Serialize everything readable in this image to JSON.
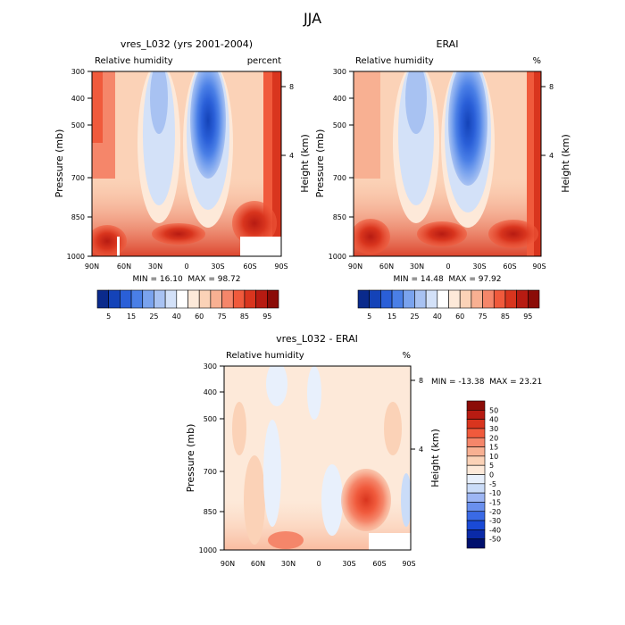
{
  "figure": {
    "title": "JJA"
  },
  "palettes": {
    "rh": [
      "#0a2a8c",
      "#1443b8",
      "#2a5fd8",
      "#4a7fe6",
      "#7aa3ee",
      "#a8c2f2",
      "#d3e1f8",
      "#ffffff",
      "#fde9d9",
      "#fbd2b7",
      "#f8b092",
      "#f5866a",
      "#f05a3c",
      "#d9351e",
      "#b71b12",
      "#8b0c07"
    ],
    "diff": [
      "#00106e",
      "#0a2aa8",
      "#1a4ad6",
      "#3a6ae6",
      "#6a90ee",
      "#9db6f4",
      "#cadcf8",
      "#e8f0fc",
      "#fde9d9",
      "#fbd2b7",
      "#f8b092",
      "#f5866a",
      "#f05a3c",
      "#d9351e",
      "#b71b12",
      "#8b0c07"
    ]
  },
  "chart_data": [
    {
      "type": "heatmap",
      "title": "vres_L032 (yrs 2001-2004)",
      "subtitle_left": "Relative humidity",
      "subtitle_right": "percent",
      "ylabel": "Pressure (mb)",
      "ylabel_right": "Height (km)",
      "x_ticks": [
        "90N",
        "60N",
        "30N",
        "0",
        "30S",
        "60S",
        "90S"
      ],
      "y_ticks": [
        "300",
        "400",
        "500",
        "700",
        "850",
        "1000"
      ],
      "y_ticks_right": [
        "8",
        "4"
      ],
      "stats": "MIN = 16.10  MAX = 98.72",
      "min": 16.1,
      "max": 98.72,
      "colorbar": {
        "labels": [
          "5",
          "15",
          "25",
          "40",
          "60",
          "75",
          "85",
          "95"
        ]
      }
    },
    {
      "type": "heatmap",
      "title": "ERAI",
      "subtitle_left": "Relative humidity",
      "subtitle_right": "%",
      "ylabel": "Pressure (mb)",
      "ylabel_right": "Height (km)",
      "x_ticks": [
        "90N",
        "60N",
        "30N",
        "0",
        "30S",
        "60S",
        "90S"
      ],
      "y_ticks": [
        "300",
        "400",
        "500",
        "700",
        "850",
        "1000"
      ],
      "y_ticks_right": [
        "8",
        "4"
      ],
      "stats": "MIN = 14.48  MAX = 97.92",
      "min": 14.48,
      "max": 97.92,
      "colorbar": {
        "labels": [
          "5",
          "15",
          "25",
          "40",
          "60",
          "75",
          "85",
          "95"
        ]
      }
    },
    {
      "type": "heatmap",
      "title": "vres_L032 - ERAI",
      "subtitle_left": "Relative humidity",
      "subtitle_right": "%",
      "ylabel": "Pressure (mb)",
      "ylabel_right": "Height (km)",
      "x_ticks": [
        "90N",
        "60N",
        "30N",
        "0",
        "30S",
        "60S",
        "90S"
      ],
      "y_ticks": [
        "300",
        "400",
        "500",
        "700",
        "850",
        "1000"
      ],
      "y_ticks_right": [
        "8",
        "4"
      ],
      "stats": "MIN = -13.38  MAX = 23.21",
      "min": -13.38,
      "max": 23.21,
      "colorbar": {
        "labels": [
          "50",
          "40",
          "30",
          "20",
          "15",
          "10",
          "5",
          "0",
          "-5",
          "-10",
          "-15",
          "-20",
          "-30",
          "-40",
          "-50"
        ]
      }
    }
  ]
}
